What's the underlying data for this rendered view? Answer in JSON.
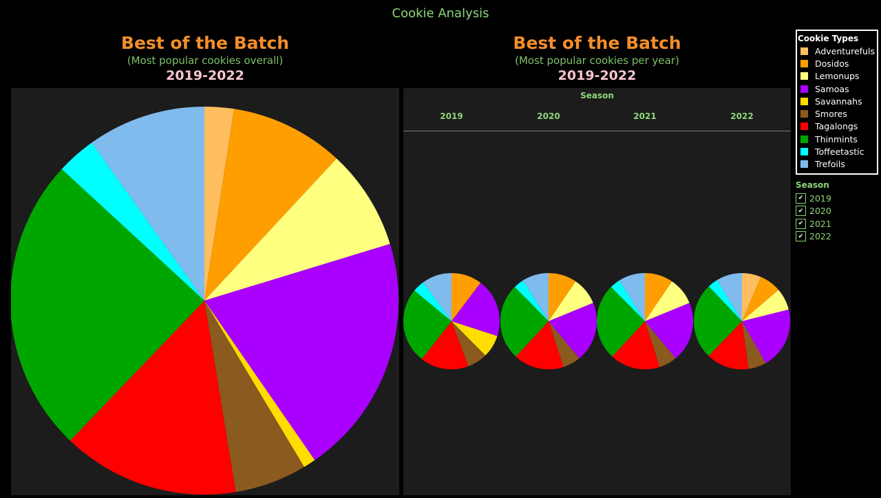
{
  "dashboard": {
    "title": "Cookie Analysis"
  },
  "left_panel": {
    "title": "Best of the Batch",
    "subtitle": "(Most popular cookies overall)",
    "years": "2019-2022"
  },
  "right_panel": {
    "title": "Best of the Batch",
    "subtitle": "(Most popular cookies per year)",
    "years": "2019-2022",
    "header": "Season"
  },
  "legend": {
    "title": "Cookie Types",
    "items": [
      {
        "label": "Adventurefuls",
        "color": "#ffbe5f"
      },
      {
        "label": "Dosidos",
        "color": "#ff9e00"
      },
      {
        "label": "Lemonups",
        "color": "#ffff80"
      },
      {
        "label": "Samoas",
        "color": "#aa00ff"
      },
      {
        "label": "Savannahs",
        "color": "#ffdd00"
      },
      {
        "label": "Smores",
        "color": "#8b5a1e"
      },
      {
        "label": "Tagalongs",
        "color": "#ff0000"
      },
      {
        "label": "Thinmints",
        "color": "#00a600"
      },
      {
        "label": "Toffeetastic",
        "color": "#00ffff"
      },
      {
        "label": "Trefoils",
        "color": "#80bbee"
      }
    ]
  },
  "filter": {
    "title": "Season",
    "items": [
      {
        "label": "2019",
        "checked": true
      },
      {
        "label": "2020",
        "checked": true
      },
      {
        "label": "2021",
        "checked": true
      },
      {
        "label": "2022",
        "checked": true
      }
    ]
  },
  "chart_data": [
    {
      "type": "pie",
      "title": "Best of the Batch",
      "categories": [
        "Adventurefuls",
        "Dosidos",
        "Lemonups",
        "Samoas",
        "Savannahs",
        "Smores",
        "Tagalongs",
        "Thinmints",
        "Toffeetastic",
        "Trefoils"
      ],
      "values": [
        2.6,
        10.1,
        8.9,
        21.4,
        1.1,
        6.4,
        15.7,
        26.3,
        3.5,
        10.5
      ]
    },
    {
      "type": "pie",
      "title": "Best of the Batch",
      "facet_by": "Season",
      "categories": [
        "Adventurefuls",
        "Dosidos",
        "Lemonups",
        "Samoas",
        "Savannahs",
        "Smores",
        "Tagalongs",
        "Thinmints",
        "Toffeetastic",
        "Trefoils"
      ],
      "series": [
        {
          "name": "2019",
          "values": [
            0,
            10.3,
            0,
            19.7,
            7.6,
            6.7,
            16.3,
            25.4,
            4.0,
            10.0
          ]
        },
        {
          "name": "2020",
          "values": [
            0,
            9.5,
            9.3,
            20.2,
            0,
            6.0,
            16.9,
            25.7,
            3.5,
            8.9
          ]
        },
        {
          "name": "2021",
          "values": [
            0,
            9.5,
            9.3,
            20.2,
            0,
            6.0,
            16.9,
            25.7,
            3.5,
            8.9
          ]
        },
        {
          "name": "2022",
          "values": [
            6.5,
            7.2,
            7.4,
            20.7,
            0,
            6.0,
            14.4,
            25.7,
            3.5,
            8.6
          ]
        }
      ]
    }
  ]
}
